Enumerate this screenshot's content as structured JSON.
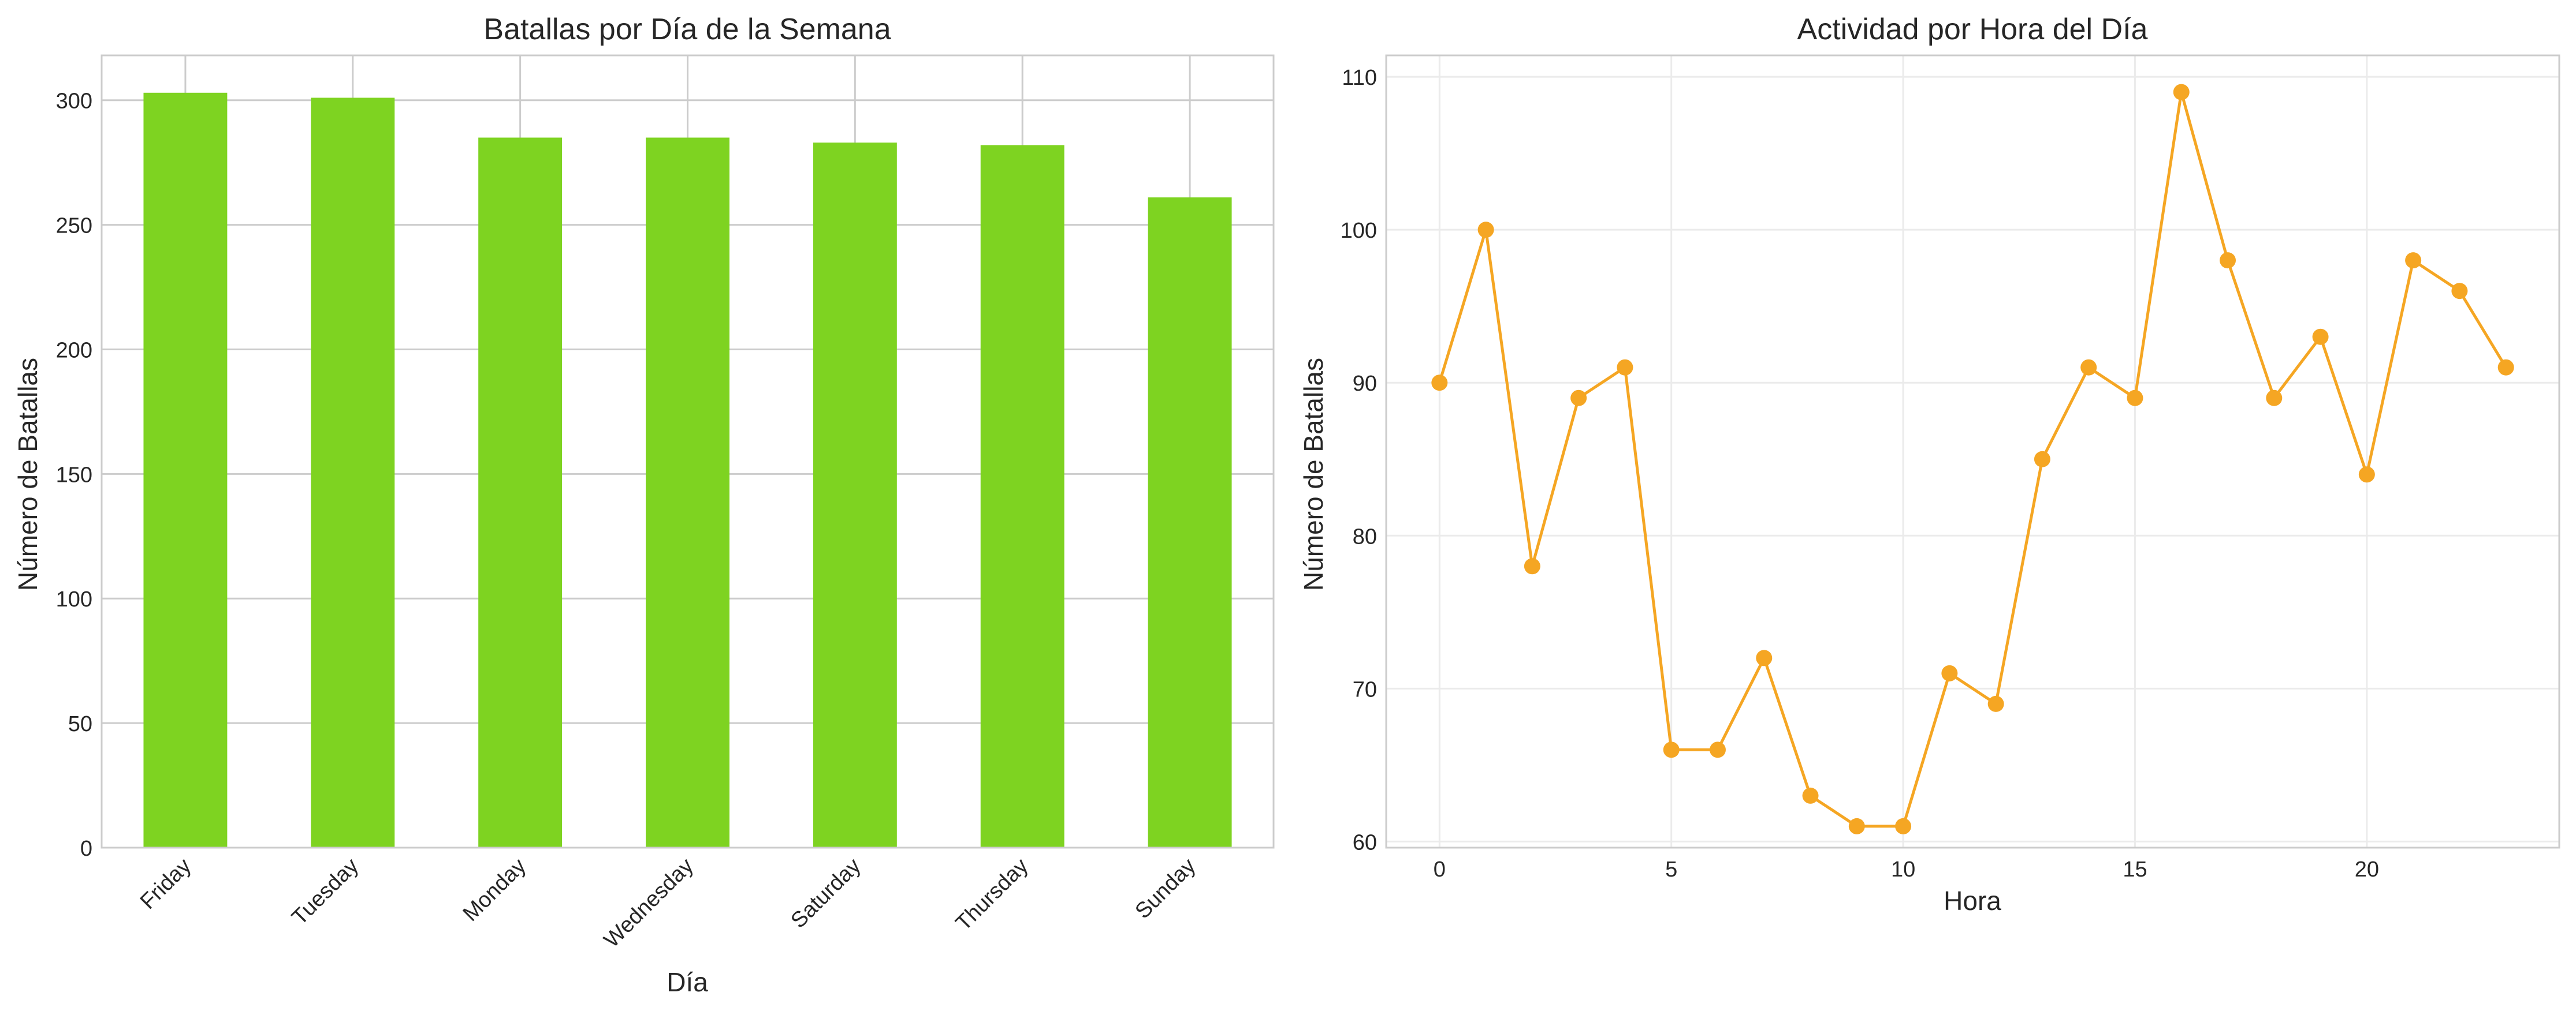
{
  "chart_data": [
    {
      "type": "bar",
      "title": "Batallas por Día de la Semana",
      "xlabel": "Día",
      "ylabel": "Número de Batallas",
      "categories": [
        "Friday",
        "Tuesday",
        "Monday",
        "Wednesday",
        "Saturday",
        "Thursday",
        "Sunday"
      ],
      "values": [
        303,
        301,
        285,
        285,
        283,
        282,
        261
      ],
      "ylim": [
        0,
        318
      ],
      "yticks": [
        0,
        50,
        100,
        150,
        200,
        250,
        300
      ],
      "grid": true,
      "color": "#7ed321"
    },
    {
      "type": "line",
      "title": "Actividad por Hora del Día",
      "xlabel": "Hora",
      "ylabel": "Número de Batallas",
      "x": [
        0,
        1,
        2,
        3,
        4,
        5,
        6,
        7,
        8,
        9,
        10,
        11,
        12,
        13,
        14,
        15,
        16,
        17,
        18,
        19,
        20,
        21,
        22,
        23
      ],
      "values": [
        90,
        100,
        78,
        89,
        91,
        66,
        66,
        72,
        63,
        61,
        61,
        71,
        69,
        85,
        91,
        89,
        109,
        98,
        89,
        93,
        84,
        98,
        96,
        91
      ],
      "xlim": [
        -1.15,
        24.15
      ],
      "ylim": [
        59.6,
        111.4
      ],
      "xticks": [
        0,
        5,
        10,
        15,
        20
      ],
      "yticks": [
        60,
        70,
        80,
        90,
        100,
        110
      ],
      "grid": true,
      "markers": true,
      "color": "#f5a623"
    }
  ]
}
